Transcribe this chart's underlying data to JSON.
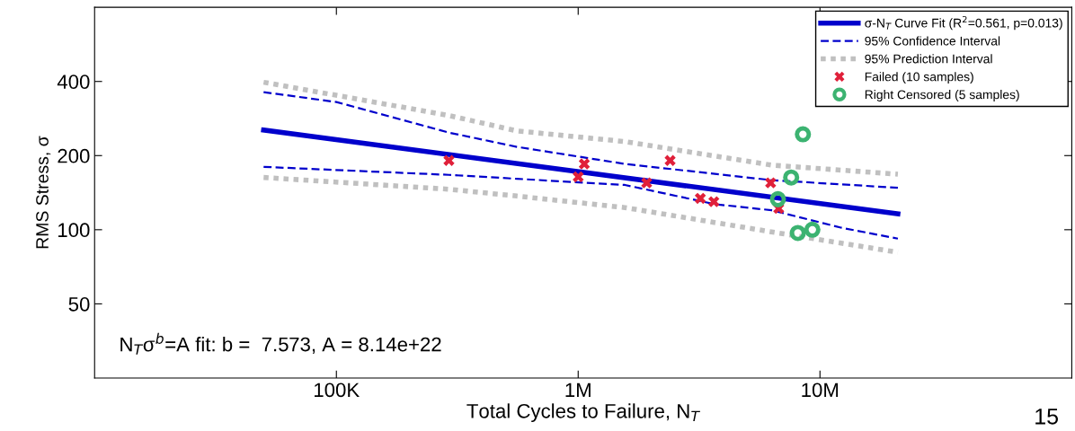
{
  "chart_data": {
    "type": "line",
    "xlabel": "Total Cycles to Failure, N$_{T}$",
    "ylabel": "RMS Stress, σ",
    "log": "xy",
    "xlim": [
      10000,
      110000000
    ],
    "ylim": [
      25,
      800
    ],
    "xticks": [
      {
        "value": 100000,
        "label": "100K"
      },
      {
        "value": 1000000,
        "label": "1M"
      },
      {
        "value": 10000000,
        "label": "10M"
      }
    ],
    "yticks": [
      50,
      100,
      200,
      400
    ],
    "grid": false,
    "legend": "top right",
    "series": [
      {
        "name": "σ-N$_{T}$ Curve Fit (R$^{2}$=0.561, p=0.013)",
        "line_style": "solid",
        "marker": "none",
        "color": "#0000cc",
        "x": [
          50000,
          21000000
        ],
        "values": [
          254,
          116
        ]
      },
      {
        "name": "95% Confidence Interval",
        "line_style": "dashed",
        "marker": "none",
        "color": "#0000cc",
        "x": [
          50000,
          100000,
          292000,
          558000,
          1560000,
          6300000,
          21000000
        ],
        "values": [
          362,
          330,
          248,
          217,
          185,
          159,
          148
        ]
      },
      {
        "line_style": "dashed",
        "marker": "none",
        "color": "#0000cc",
        "x": [
          50000,
          292000,
          558000,
          1560000,
          3670000,
          6300000,
          12200000,
          21000000
        ],
        "values": [
          180,
          167,
          161,
          152,
          127,
          120,
          102,
          92
        ]
      },
      {
        "name": "95% Prediction Interval",
        "line_style": "dotted",
        "marker": "none",
        "color": "#c0c0c0",
        "x": [
          50000,
          292000,
          558000,
          1560000,
          6300000,
          21000000
        ],
        "values": [
          397,
          291,
          252,
          228,
          183,
          168
        ]
      },
      {
        "line_style": "dotted",
        "marker": "none",
        "color": "#c0c0c0",
        "x": [
          50000,
          292000,
          558000,
          1560000,
          6300000,
          21000000
        ],
        "values": [
          163,
          146,
          137,
          123,
          98,
          81
        ]
      },
      {
        "name": "Failed (10 samples)",
        "type": "scatter",
        "marker": "cross",
        "color": "#e0203a",
        "x": [
          292000,
          1000000,
          1060000,
          1920000,
          2400000,
          3200000,
          3640000,
          6250000,
          6750000
        ],
        "values": [
          191,
          164,
          185,
          155,
          191,
          134,
          130,
          155,
          122
        ]
      },
      {
        "name": "Right Censored (5 samples)",
        "type": "scatter",
        "marker": "circle",
        "color": "#3cb371",
        "x": [
          8500000,
          7600000,
          6700000,
          8100000,
          9300000
        ],
        "values": [
          244,
          163,
          133,
          97,
          100
        ]
      }
    ],
    "annotations": [
      "N$_{T}$σ$^{b}$=A fit: b =  7.573, A = 8.14e+22",
      "15"
    ]
  }
}
